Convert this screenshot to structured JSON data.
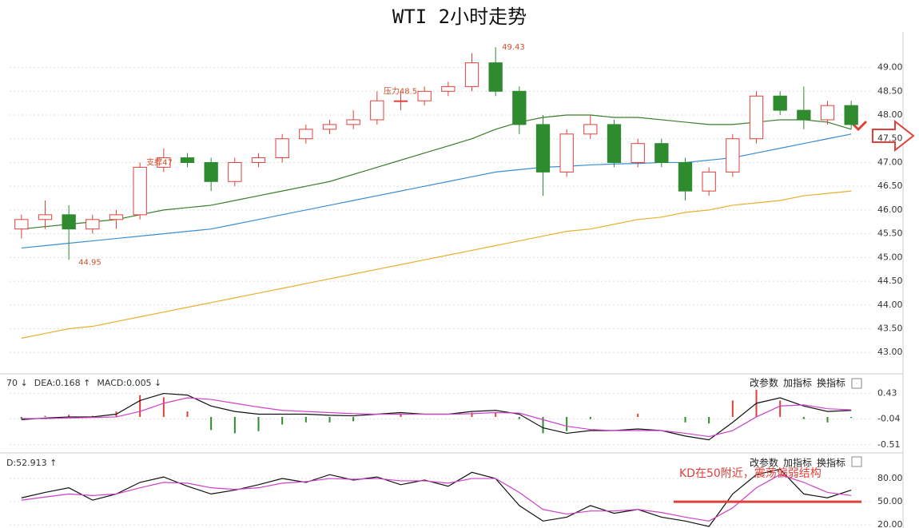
{
  "chart_data": [
    {
      "type": "candlestick",
      "title": "WTI 2小时走势",
      "open": [
        45.6,
        45.8,
        45.9,
        45.6,
        45.8,
        45.9,
        46.9,
        47.1,
        47.0,
        46.6,
        47.0,
        47.1,
        47.5,
        47.7,
        47.8,
        47.9,
        48.3,
        48.3,
        48.5,
        48.6,
        49.1,
        48.5,
        47.8,
        46.8,
        47.6,
        47.8,
        47.0,
        47.4,
        47.0,
        46.4,
        46.8,
        47.5,
        48.4,
        48.1,
        47.9,
        48.2
      ],
      "high": [
        45.9,
        46.2,
        46.1,
        45.9,
        46.0,
        47.0,
        47.3,
        47.2,
        47.1,
        47.1,
        47.2,
        47.6,
        47.8,
        47.9,
        48.1,
        48.5,
        48.5,
        48.6,
        48.7,
        49.3,
        49.43,
        48.6,
        48.0,
        47.7,
        48.0,
        47.9,
        47.5,
        47.5,
        47.1,
        46.9,
        47.6,
        48.5,
        48.5,
        48.6,
        48.3,
        48.3
      ],
      "low": [
        45.4,
        45.6,
        44.95,
        45.5,
        45.6,
        45.8,
        46.8,
        46.9,
        46.4,
        46.5,
        46.9,
        47.0,
        47.4,
        47.6,
        47.7,
        47.8,
        48.1,
        48.2,
        48.4,
        48.5,
        48.4,
        47.6,
        46.3,
        46.7,
        47.5,
        46.9,
        46.9,
        46.9,
        46.2,
        46.3,
        46.7,
        47.4,
        48.0,
        47.7,
        47.8,
        47.7
      ],
      "close": [
        45.8,
        45.9,
        45.6,
        45.8,
        45.9,
        46.9,
        47.1,
        47.0,
        46.6,
        47.0,
        47.1,
        47.5,
        47.7,
        47.8,
        47.9,
        48.3,
        48.3,
        48.5,
        48.6,
        49.1,
        48.5,
        47.8,
        46.8,
        47.6,
        47.8,
        47.0,
        47.4,
        47.0,
        46.4,
        46.8,
        47.5,
        48.4,
        48.1,
        47.9,
        48.2,
        47.8
      ],
      "up_color": "#e0403a",
      "down_color": "#2e8b2e",
      "series": [
        {
          "color": "#3a7d2a",
          "values": [
            45.6,
            45.65,
            45.7,
            45.75,
            45.8,
            45.9,
            46.0,
            46.05,
            46.1,
            46.2,
            46.3,
            46.4,
            46.5,
            46.6,
            46.75,
            46.9,
            47.05,
            47.2,
            47.35,
            47.5,
            47.7,
            47.85,
            47.95,
            48.0,
            48.0,
            47.95,
            47.95,
            47.9,
            47.85,
            47.8,
            47.8,
            47.85,
            47.9,
            47.9,
            47.85,
            47.7
          ]
        },
        {
          "color": "#3b8ed0",
          "values": [
            45.2,
            45.25,
            45.3,
            45.35,
            45.4,
            45.45,
            45.5,
            45.55,
            45.6,
            45.7,
            45.8,
            45.9,
            46.0,
            46.1,
            46.2,
            46.3,
            46.4,
            46.5,
            46.6,
            46.7,
            46.8,
            46.85,
            46.9,
            46.92,
            46.95,
            46.97,
            46.98,
            47.0,
            47.0,
            47.05,
            47.1,
            47.2,
            47.3,
            47.4,
            47.5,
            47.6
          ]
        },
        {
          "color": "#e8b030",
          "values": [
            43.3,
            43.4,
            43.5,
            43.55,
            43.65,
            43.75,
            43.85,
            43.95,
            44.05,
            44.15,
            44.25,
            44.35,
            44.45,
            44.55,
            44.65,
            44.75,
            44.85,
            44.95,
            45.05,
            45.15,
            45.25,
            45.35,
            45.45,
            45.55,
            45.6,
            45.7,
            45.8,
            45.85,
            45.95,
            46.0,
            46.1,
            46.15,
            46.2,
            46.3,
            46.35,
            46.4
          ]
        }
      ],
      "annotations": [
        {
          "label": "49.43",
          "value": 49.43
        },
        {
          "label": "44.95",
          "value": 44.95
        },
        {
          "label": "压力48.5",
          "value": 48.5
        },
        {
          "label": "支撑47",
          "value": 47
        }
      ],
      "ylim": [
        42.6,
        49.75
      ],
      "yticks": [
        {
          "value": 43,
          "label": "43.00"
        },
        {
          "value": 43.5,
          "label": "43.50"
        },
        {
          "value": 44,
          "label": "44.00"
        },
        {
          "value": 44.5,
          "label": "44.50"
        },
        {
          "value": 45,
          "label": "45.00"
        },
        {
          "value": 45.5,
          "label": "45.50"
        },
        {
          "value": 46,
          "label": "46.00"
        },
        {
          "value": 46.5,
          "label": "46.50"
        },
        {
          "value": 47,
          "label": "47.00"
        },
        {
          "value": 47.5,
          "label": "47.50"
        },
        {
          "value": 48,
          "label": "48.00"
        },
        {
          "value": 48.5,
          "label": "48.50"
        },
        {
          "value": 49,
          "label": "49.00"
        }
      ],
      "grid": true
    },
    {
      "type": "macd",
      "header": [
        "70 ↓",
        "DEA:0.168 ↑",
        "MACD:0.005 ↓"
      ],
      "buttons": [
        "改参数",
        "加指标",
        "换指标"
      ],
      "histogram": [
        -0.04,
        0.02,
        0.04,
        0.02,
        0.1,
        0.4,
        0.36,
        0.1,
        -0.24,
        -0.3,
        -0.26,
        -0.14,
        -0.1,
        -0.1,
        -0.08,
        0,
        0.06,
        0,
        0,
        0.08,
        0.08,
        -0.04,
        -0.3,
        -0.26,
        -0.04,
        0,
        0.06,
        0,
        -0.1,
        -0.12,
        0.3,
        0.5,
        0.3,
        -0.04,
        -0.1,
        -0.02
      ],
      "up_color": "#e0403a",
      "down_color": "#2e8b2e",
      "series": [
        {
          "color": "#111111",
          "values": [
            -0.05,
            -0.02,
            0.0,
            0.0,
            0.05,
            0.3,
            0.43,
            0.4,
            0.2,
            0.1,
            0.05,
            0.05,
            0.05,
            0.03,
            0.02,
            0.05,
            0.08,
            0.05,
            0.05,
            0.1,
            0.12,
            0.05,
            -0.2,
            -0.3,
            -0.25,
            -0.25,
            -0.22,
            -0.25,
            -0.35,
            -0.42,
            -0.1,
            0.25,
            0.35,
            0.2,
            0.1,
            0.12
          ]
        },
        {
          "color": "#d040c8",
          "values": [
            -0.03,
            -0.03,
            -0.02,
            -0.01,
            0.0,
            0.1,
            0.25,
            0.35,
            0.32,
            0.25,
            0.18,
            0.12,
            0.1,
            0.08,
            0.06,
            0.05,
            0.05,
            0.05,
            0.05,
            0.06,
            0.08,
            0.07,
            -0.05,
            -0.17,
            -0.23,
            -0.25,
            -0.25,
            -0.25,
            -0.3,
            -0.36,
            -0.25,
            0.0,
            0.2,
            0.22,
            0.15,
            0.13
          ]
        }
      ],
      "ylim": [
        -0.63,
        0.76
      ],
      "yticks": [
        0.43,
        -0.04,
        -0.51
      ]
    },
    {
      "type": "kd",
      "header": [
        "D:52.913 ↑"
      ],
      "buttons": [
        "改参数",
        "加指标",
        "换指标"
      ],
      "series": [
        {
          "color": "#111111",
          "values": [
            55,
            62,
            68,
            52,
            60,
            75,
            82,
            70,
            60,
            65,
            72,
            80,
            75,
            85,
            78,
            82,
            72,
            78,
            70,
            88,
            80,
            45,
            25,
            30,
            45,
            35,
            40,
            30,
            25,
            18,
            60,
            85,
            92,
            60,
            55,
            65
          ]
        },
        {
          "color": "#d040c8",
          "values": [
            52,
            56,
            60,
            58,
            60,
            68,
            75,
            74,
            68,
            66,
            68,
            74,
            76,
            80,
            79,
            80,
            77,
            77,
            74,
            80,
            80,
            62,
            40,
            34,
            38,
            38,
            40,
            36,
            30,
            25,
            42,
            68,
            85,
            75,
            62,
            58
          ]
        }
      ],
      "annotations": [
        {
          "label": "KD在50附近，震荡偏弱结构",
          "value": 50
        }
      ],
      "ylim": [
        16,
        110
      ],
      "yticks": [
        {
          "value": 80,
          "label": "80.00"
        },
        {
          "value": 50,
          "label": "50.00"
        },
        {
          "value": 20,
          "label": "20.00"
        }
      ]
    }
  ]
}
